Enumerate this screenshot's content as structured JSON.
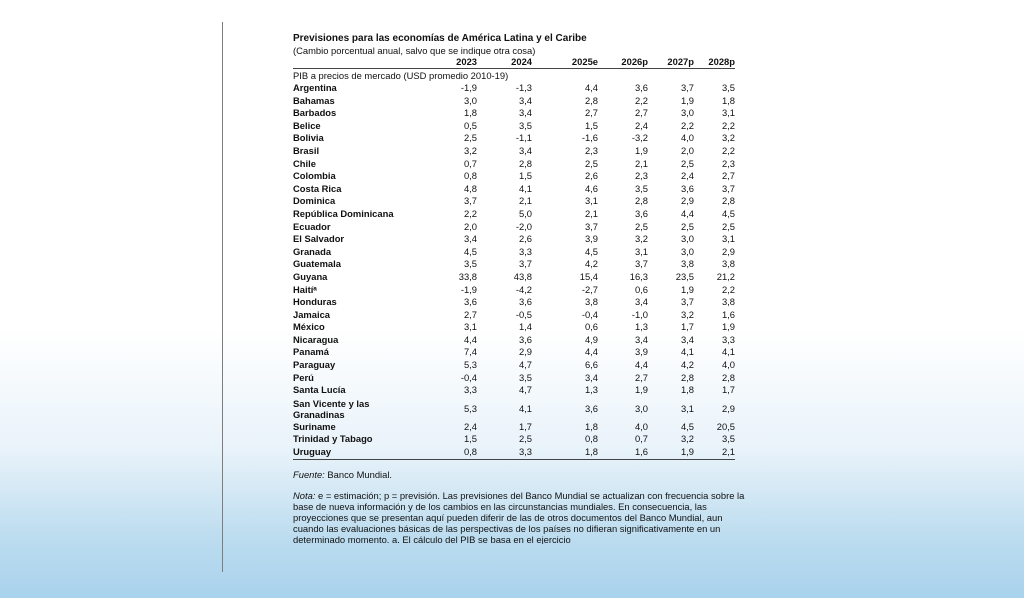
{
  "title": "Previsiones para las economías de América Latina y el Caribe",
  "subtitle": "(Cambio porcentual anual, salvo que se indique otra cosa)",
  "columns": [
    "2023",
    "2024",
    "2025e",
    "2026p",
    "2027p",
    "2028p"
  ],
  "section_label": "PIB a precios de mercado (USD promedio 2010-19)",
  "rows": [
    {
      "country": "Argentina",
      "values": [
        "-1,9",
        "-1,3",
        "4,4",
        "3,6",
        "3,7",
        "3,5"
      ]
    },
    {
      "country": "Bahamas",
      "values": [
        "3,0",
        "3,4",
        "2,8",
        "2,2",
        "1,9",
        "1,8"
      ]
    },
    {
      "country": "Barbados",
      "values": [
        "1,8",
        "3,4",
        "2,7",
        "2,7",
        "3,0",
        "3,1"
      ]
    },
    {
      "country": "Belice",
      "values": [
        "0,5",
        "3,5",
        "1,5",
        "2,4",
        "2,2",
        "2,2"
      ]
    },
    {
      "country": "Bolivia",
      "values": [
        "2,5",
        "-1,1",
        "-1,6",
        "-3,2",
        "4,0",
        "3,2"
      ]
    },
    {
      "country": "Brasil",
      "values": [
        "3,2",
        "3,4",
        "2,3",
        "1,9",
        "2,0",
        "2,2"
      ]
    },
    {
      "country": "Chile",
      "values": [
        "0,7",
        "2,8",
        "2,5",
        "2,1",
        "2,5",
        "2,3"
      ]
    },
    {
      "country": "Colombia",
      "values": [
        "0,8",
        "1,5",
        "2,6",
        "2,3",
        "2,4",
        "2,7"
      ]
    },
    {
      "country": "Costa Rica",
      "values": [
        "4,8",
        "4,1",
        "4,6",
        "3,5",
        "3,6",
        "3,7"
      ]
    },
    {
      "country": "Dominica",
      "values": [
        "3,7",
        "2,1",
        "3,1",
        "2,8",
        "2,9",
        "2,8"
      ]
    },
    {
      "country": "República Dominicana",
      "values": [
        "2,2",
        "5,0",
        "2,1",
        "3,6",
        "4,4",
        "4,5"
      ]
    },
    {
      "country": "Ecuador",
      "values": [
        "2,0",
        "-2,0",
        "3,7",
        "2,5",
        "2,5",
        "2,5"
      ]
    },
    {
      "country": "El Salvador",
      "values": [
        "3,4",
        "2,6",
        "3,9",
        "3,2",
        "3,0",
        "3,1"
      ]
    },
    {
      "country": "Granada",
      "values": [
        "4,5",
        "3,3",
        "4,5",
        "3,1",
        "3,0",
        "2,9"
      ]
    },
    {
      "country": "Guatemala",
      "values": [
        "3,5",
        "3,7",
        "4,2",
        "3,7",
        "3,8",
        "3,8"
      ]
    },
    {
      "country": "Guyana",
      "values": [
        "33,8",
        "43,8",
        "15,4",
        "16,3",
        "23,5",
        "21,2"
      ]
    },
    {
      "country": "Haitíᵃ",
      "values": [
        "-1,9",
        "-4,2",
        "-2,7",
        "0,6",
        "1,9",
        "2,2"
      ]
    },
    {
      "country": "Honduras",
      "values": [
        "3,6",
        "3,6",
        "3,8",
        "3,4",
        "3,7",
        "3,8"
      ]
    },
    {
      "country": "Jamaica",
      "values": [
        "2,7",
        "-0,5",
        "-0,4",
        "-1,0",
        "3,2",
        "1,6"
      ]
    },
    {
      "country": "México",
      "values": [
        "3,1",
        "1,4",
        "0,6",
        "1,3",
        "1,7",
        "1,9"
      ]
    },
    {
      "country": "Nicaragua",
      "values": [
        "4,4",
        "3,6",
        "4,9",
        "3,4",
        "3,4",
        "3,3"
      ]
    },
    {
      "country": "Panamá",
      "values": [
        "7,4",
        "2,9",
        "4,4",
        "3,9",
        "4,1",
        "4,1"
      ]
    },
    {
      "country": "Paraguay",
      "values": [
        "5,3",
        "4,7",
        "6,6",
        "4,4",
        "4,2",
        "4,0"
      ]
    },
    {
      "country": "Perú",
      "values": [
        "-0,4",
        "3,5",
        "3,4",
        "2,7",
        "2,8",
        "2,8"
      ]
    },
    {
      "country": "Santa Lucía",
      "values": [
        "3,3",
        "4,7",
        "1,3",
        "1,9",
        "1,8",
        "1,7"
      ]
    },
    {
      "country": "San Vicente y las Granadinas",
      "values": [
        "5,3",
        "4,1",
        "3,6",
        "3,0",
        "3,1",
        "2,9"
      ]
    },
    {
      "country": "Suriname",
      "values": [
        "2,4",
        "1,7",
        "1,8",
        "4,0",
        "4,5",
        "20,5"
      ]
    },
    {
      "country": "Trinidad y Tabago",
      "values": [
        "1,5",
        "2,5",
        "0,8",
        "0,7",
        "3,2",
        "3,5"
      ]
    },
    {
      "country": "Uruguay",
      "values": [
        "0,8",
        "3,3",
        "1,8",
        "1,6",
        "1,9",
        "2,1"
      ]
    }
  ],
  "source_label": "Fuente:",
  "source_text": " Banco Mundial.",
  "note_label": "Nota:",
  "note_text": " e = estimación; p = previsión. Las previsiones del Banco Mundial se actualizan con frecuencia sobre la base de nueva información y de los cambios en las circunstancias mundiales. En consecuencia, las proyecciones que se presentan aquí pueden diferir de las de otros documentos del Banco Mundial, aun cuando las evaluaciones básicas de las perspectivas de los países no difieran significativamente en un determinado momento. a. El cálculo del PIB se basa en el ejercicio"
}
